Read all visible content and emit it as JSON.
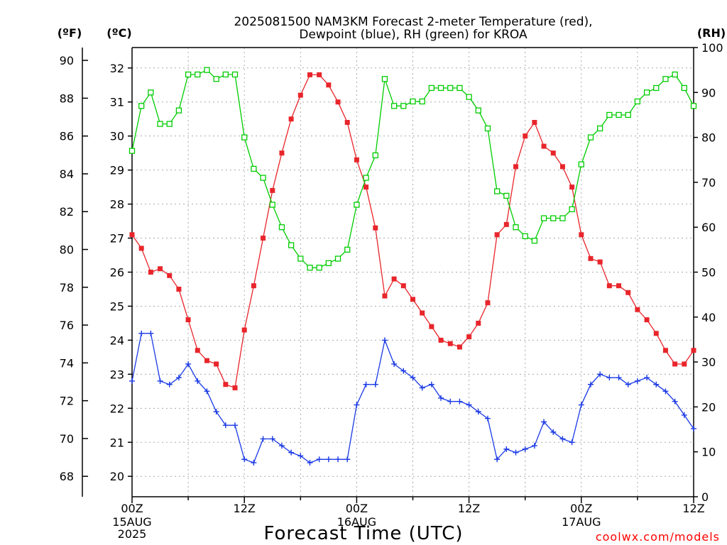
{
  "title": {
    "line1": "2025081500 NAM3KM Forecast 2-meter Temperature (red),",
    "line2": "Dewpoint (blue), RH (green) for KROA"
  },
  "axes": {
    "f_unit": "(ºF)",
    "c_unit": "(ºC)",
    "rh_unit": "(RH)",
    "x_title": "Forecast Time (UTC)",
    "f_ticks": [
      "68",
      "70",
      "72",
      "74",
      "76",
      "78",
      "80",
      "82",
      "84",
      "86",
      "88",
      "90"
    ],
    "c_ticks": [
      "20",
      "21",
      "22",
      "23",
      "24",
      "25",
      "26",
      "27",
      "28",
      "29",
      "30",
      "31",
      "32"
    ],
    "rh_ticks": [
      "0",
      "10",
      "20",
      "30",
      "40",
      "50",
      "60",
      "70",
      "80",
      "90",
      "100"
    ],
    "x_ticks": [
      {
        "hour": "00Z",
        "date": "15AUG",
        "year": "2025"
      },
      {
        "hour": "12Z",
        "date": "",
        "year": ""
      },
      {
        "hour": "00Z",
        "date": "16AUG",
        "year": ""
      },
      {
        "hour": "12Z",
        "date": "",
        "year": ""
      },
      {
        "hour": "00Z",
        "date": "17AUG",
        "year": ""
      },
      {
        "hour": "12Z",
        "date": "",
        "year": ""
      }
    ]
  },
  "credit": "coolwx.com/models",
  "colors": {
    "temperature": "#e8252b",
    "dewpoint": "#1a39e6",
    "rh": "#00cc00"
  },
  "chart_data": {
    "type": "line",
    "x_unit": "forecast hour",
    "x_range": [
      0,
      60
    ],
    "c_range": [
      19.4,
      32.6
    ],
    "rh_range": [
      0,
      100
    ],
    "grid": true,
    "series": [
      {
        "name": "2-meter Temperature",
        "axis": "celsius",
        "values": [
          27.1,
          26.7,
          26.0,
          26.1,
          25.9,
          25.5,
          24.6,
          23.7,
          23.4,
          23.3,
          22.7,
          22.6,
          24.3,
          25.6,
          27.0,
          28.4,
          29.5,
          30.5,
          31.2,
          31.8,
          31.8,
          31.5,
          31.0,
          30.4,
          29.3,
          28.5,
          27.3,
          25.3,
          25.8,
          25.6,
          25.2,
          24.8,
          24.4,
          24.0,
          23.9,
          23.8,
          24.1,
          24.5,
          25.1,
          27.1,
          27.4,
          29.1,
          30.0,
          30.4,
          29.7,
          29.5,
          29.1,
          28.5,
          27.1,
          26.4,
          26.3,
          25.6,
          25.6,
          25.4,
          24.9,
          24.6,
          24.2,
          23.7,
          23.3,
          23.3,
          23.7
        ]
      },
      {
        "name": "Dewpoint",
        "axis": "celsius",
        "values": [
          22.8,
          24.2,
          24.2,
          22.8,
          22.7,
          22.9,
          23.3,
          22.8,
          22.5,
          21.9,
          21.5,
          21.5,
          20.5,
          20.4,
          21.1,
          21.1,
          20.9,
          20.7,
          20.6,
          20.4,
          20.5,
          20.5,
          20.5,
          20.5,
          22.1,
          22.7,
          22.7,
          24.0,
          23.3,
          23.1,
          22.9,
          22.6,
          22.7,
          22.3,
          22.2,
          22.2,
          22.1,
          21.9,
          21.7,
          20.5,
          20.8,
          20.7,
          20.8,
          20.9,
          21.6,
          21.3,
          21.1,
          21.0,
          22.1,
          22.7,
          23.0,
          22.9,
          22.9,
          22.7,
          22.8,
          22.9,
          22.7,
          22.5,
          22.2,
          21.8,
          21.4
        ]
      },
      {
        "name": "RH",
        "axis": "rh",
        "values": [
          77,
          87,
          90,
          83,
          83,
          86,
          94,
          94,
          95,
          93,
          94,
          94,
          80,
          73,
          71,
          65,
          60,
          56,
          53,
          51,
          51,
          52,
          53,
          55,
          65,
          71,
          76,
          93,
          87,
          87,
          88,
          88,
          91,
          91,
          91,
          91,
          89,
          86,
          82,
          68,
          67,
          60,
          58,
          57,
          62,
          62,
          62,
          64,
          74,
          80,
          82,
          85,
          85,
          85,
          88,
          90,
          91,
          93,
          94,
          91,
          87
        ]
      }
    ]
  }
}
